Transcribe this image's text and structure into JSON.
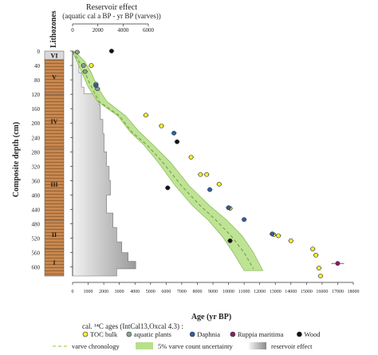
{
  "chart_data": {
    "type": "scatter",
    "lithozone_axis_title": "Lithozones",
    "lithozones": [
      {
        "label": "VI",
        "top": 0,
        "bottom": 24
      },
      {
        "label": "V",
        "top": 24,
        "bottom": 120
      },
      {
        "label": "IV",
        "top": 120,
        "bottom": 270
      },
      {
        "label": "III",
        "top": 270,
        "bottom": 470
      },
      {
        "label": "II",
        "top": 470,
        "bottom": 550
      },
      {
        "label": "I",
        "top": 550,
        "bottom": 625
      }
    ],
    "top_axis": {
      "title_line1": "Reservoir effect",
      "title_line2": "(aquatic cal a BP -  yr BP (varves))",
      "ticks": [
        "0",
        "2000",
        "4000",
        "6000"
      ],
      "range": [
        0,
        6000
      ]
    },
    "xlabel": "Age (yr BP)",
    "xlim": [
      0,
      18000
    ],
    "x_ticks": [
      "0",
      "1000",
      "2000",
      "3000",
      "4000",
      "5000",
      "6000",
      "7000",
      "8000",
      "9000",
      "10000",
      "11000",
      "12000",
      "13000",
      "14000",
      "15000",
      "16000",
      "17000",
      "18000"
    ],
    "ylabel": "Composite depth (cm)",
    "ylim": [
      0,
      625
    ],
    "y_ticks": [
      "0",
      "40",
      "80",
      "120",
      "160",
      "200",
      "240",
      "280",
      "320",
      "360",
      "400",
      "440",
      "480",
      "520",
      "560",
      "600"
    ],
    "series": [
      {
        "name": "TOC bulk",
        "color": "#f5ee2e",
        "points": [
          [
            1200,
            40
          ],
          [
            4700,
            178
          ],
          [
            5700,
            208
          ],
          [
            7600,
            295
          ],
          [
            8200,
            343
          ],
          [
            8600,
            343
          ],
          [
            9400,
            370
          ],
          [
            10100,
            437
          ],
          [
            12900,
            510
          ],
          [
            13200,
            513
          ],
          [
            14000,
            527
          ],
          [
            15400,
            550
          ],
          [
            15600,
            567
          ],
          [
            15800,
            603
          ],
          [
            15900,
            625
          ]
        ]
      },
      {
        "name": "aquatic plants",
        "color": "#8ca38c",
        "points": [
          [
            300,
            3
          ],
          [
            700,
            40
          ],
          [
            800,
            57
          ],
          [
            1500,
            92
          ],
          [
            1600,
            105
          ]
        ]
      },
      {
        "name": "Daphnia",
        "color": "#2f5fa0",
        "points": [
          [
            1500,
            96
          ],
          [
            6500,
            228
          ],
          [
            8800,
            385
          ],
          [
            10000,
            435
          ],
          [
            11000,
            468
          ],
          [
            12800,
            508
          ]
        ]
      },
      {
        "name": "Ruppia maritima",
        "color": "#8a1a6e",
        "points": [
          [
            17000,
            590
          ]
        ]
      },
      {
        "name": "Wood",
        "color": "#111111",
        "points": [
          [
            2500,
            0
          ],
          [
            6700,
            252
          ],
          [
            6100,
            380
          ],
          [
            10100,
            527
          ]
        ]
      }
    ],
    "varve_chronology": {
      "name": "varve chronology",
      "points": [
        [
          0,
          0
        ],
        [
          300,
          20
        ],
        [
          700,
          50
        ],
        [
          1100,
          90
        ],
        [
          1700,
          140
        ],
        [
          3000,
          180
        ],
        [
          3800,
          225
        ],
        [
          4800,
          262
        ],
        [
          5800,
          310
        ],
        [
          7000,
          375
        ],
        [
          8200,
          430
        ],
        [
          9200,
          470
        ],
        [
          10200,
          515
        ],
        [
          11000,
          560
        ],
        [
          11600,
          605
        ]
      ]
    },
    "uncertainty_band": {
      "name": "5% varve count uncertainty",
      "lower": [
        [
          0,
          0
        ],
        [
          100,
          12
        ],
        [
          300,
          30
        ],
        [
          600,
          60
        ],
        [
          1000,
          100
        ],
        [
          1600,
          140
        ],
        [
          2900,
          180
        ],
        [
          3700,
          225
        ],
        [
          4600,
          262
        ],
        [
          5500,
          310
        ],
        [
          6600,
          375
        ],
        [
          7700,
          430
        ],
        [
          8700,
          470
        ],
        [
          9600,
          515
        ],
        [
          10300,
          560
        ],
        [
          11000,
          610
        ]
      ],
      "upper": [
        [
          0,
          0
        ],
        [
          400,
          12
        ],
        [
          800,
          30
        ],
        [
          1200,
          60
        ],
        [
          1600,
          100
        ],
        [
          2200,
          140
        ],
        [
          3400,
          180
        ],
        [
          4300,
          225
        ],
        [
          5200,
          262
        ],
        [
          6300,
          310
        ],
        [
          7500,
          375
        ],
        [
          8800,
          430
        ],
        [
          9900,
          470
        ],
        [
          10900,
          515
        ],
        [
          11600,
          560
        ],
        [
          12200,
          610
        ]
      ]
    },
    "reservoir_effect": {
      "name": "reservoir effect",
      "steps": [
        [
          0,
          20,
          400
        ],
        [
          20,
          60,
          500
        ],
        [
          60,
          100,
          700
        ],
        [
          100,
          118,
          900
        ],
        [
          118,
          150,
          2100
        ],
        [
          150,
          190,
          2200
        ],
        [
          190,
          230,
          2400
        ],
        [
          230,
          280,
          2500
        ],
        [
          280,
          320,
          2700
        ],
        [
          320,
          360,
          2900
        ],
        [
          360,
          400,
          3000
        ],
        [
          400,
          420,
          2700
        ],
        [
          420,
          450,
          2700
        ],
        [
          450,
          490,
          3200
        ],
        [
          490,
          530,
          3500
        ],
        [
          530,
          560,
          3900
        ],
        [
          560,
          584,
          4400
        ],
        [
          584,
          605,
          5000
        ],
        [
          605,
          625,
          3500
        ]
      ]
    },
    "legend": {
      "title": "cal. ¹⁴C ages (IntCal13,Oxcal 4.3) :"
    },
    "colors": {
      "band": "#b8e08a",
      "varve_line": "#8dc63f",
      "lithozone_fill": "#c8874f",
      "lithozone_top": "#d9d9d9"
    }
  }
}
